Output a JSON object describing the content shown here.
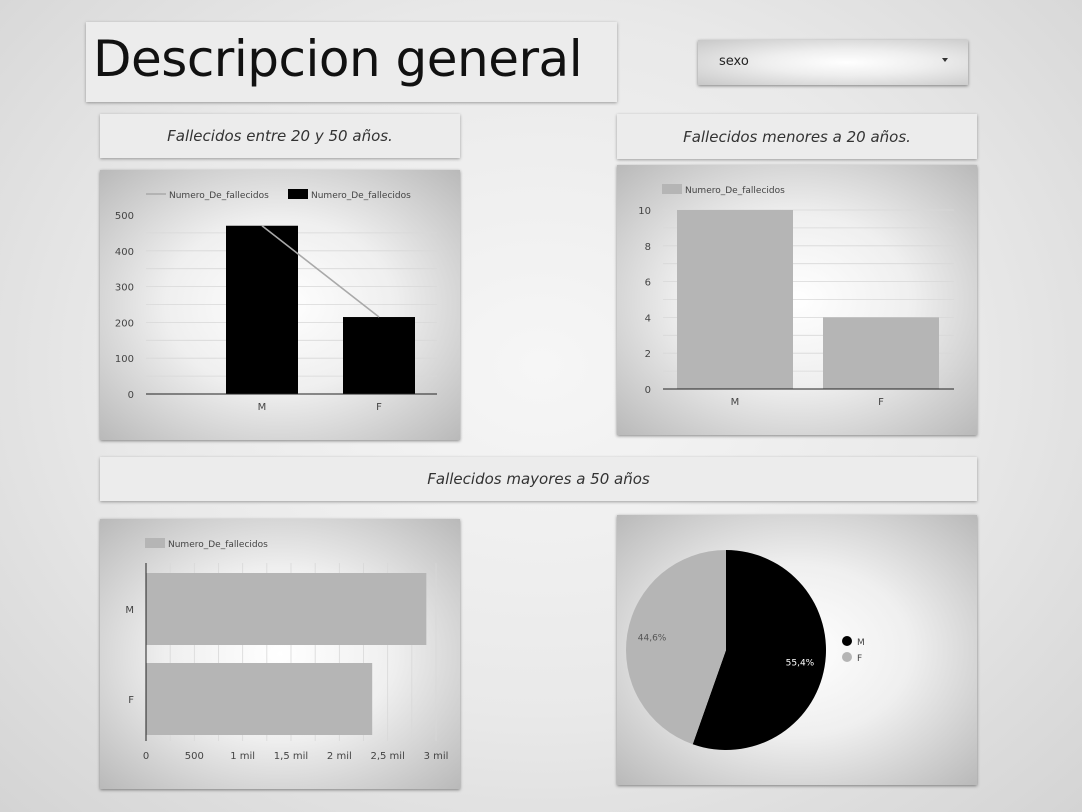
{
  "header": {
    "title": "Descripcion general"
  },
  "filter": {
    "label": "sexo"
  },
  "sections": {
    "between_20_50": "Fallecidos entre 20 y 50 años.",
    "under_20": "Fallecidos menores a 20 años.",
    "over_50": "Fallecidos mayores a 50 años"
  },
  "chart_data": [
    {
      "type": "bar",
      "categories": [
        "M",
        "F"
      ],
      "series": [
        {
          "name": "Numero_De_fallecidos",
          "values": [
            470,
            215
          ],
          "kind": "line",
          "color": "#a9a9a9"
        },
        {
          "name": "Numero_De_fallecidos",
          "values": [
            470,
            215
          ],
          "kind": "bar",
          "color": "#000000"
        }
      ],
      "yticks": [
        "0",
        "100",
        "200",
        "300",
        "400",
        "500"
      ],
      "ylim": [
        0,
        500
      ],
      "legend": "top-left",
      "grid": true
    },
    {
      "type": "bar",
      "categories": [
        "M",
        "F"
      ],
      "series": [
        {
          "name": "Numero_De_fallecidos",
          "values": [
            10,
            4
          ],
          "color": "#b5b5b5"
        }
      ],
      "yticks": [
        "0",
        "2",
        "4",
        "6",
        "8",
        "10"
      ],
      "ylim": [
        0,
        10
      ],
      "legend": "top-left",
      "grid": true
    },
    {
      "type": "bar",
      "orientation": "horizontal",
      "categories": [
        "M",
        "F"
      ],
      "series": [
        {
          "name": "Numero_De_fallecidos",
          "values": [
            2900,
            2340
          ],
          "color": "#b5b5b5"
        }
      ],
      "xticks": [
        "0",
        "500",
        "1 mil",
        "1,5 mil",
        "2 mil",
        "2,5 mil",
        "3 mil"
      ],
      "xlim": [
        0,
        3000
      ],
      "legend": "top-left",
      "grid": true
    },
    {
      "type": "pie",
      "categories": [
        "M",
        "F"
      ],
      "values": [
        55.4,
        44.6
      ],
      "labels": [
        "55,4%",
        "44,6%"
      ],
      "colors": [
        "#000000",
        "#b5b5b5"
      ],
      "legend": "right"
    }
  ]
}
